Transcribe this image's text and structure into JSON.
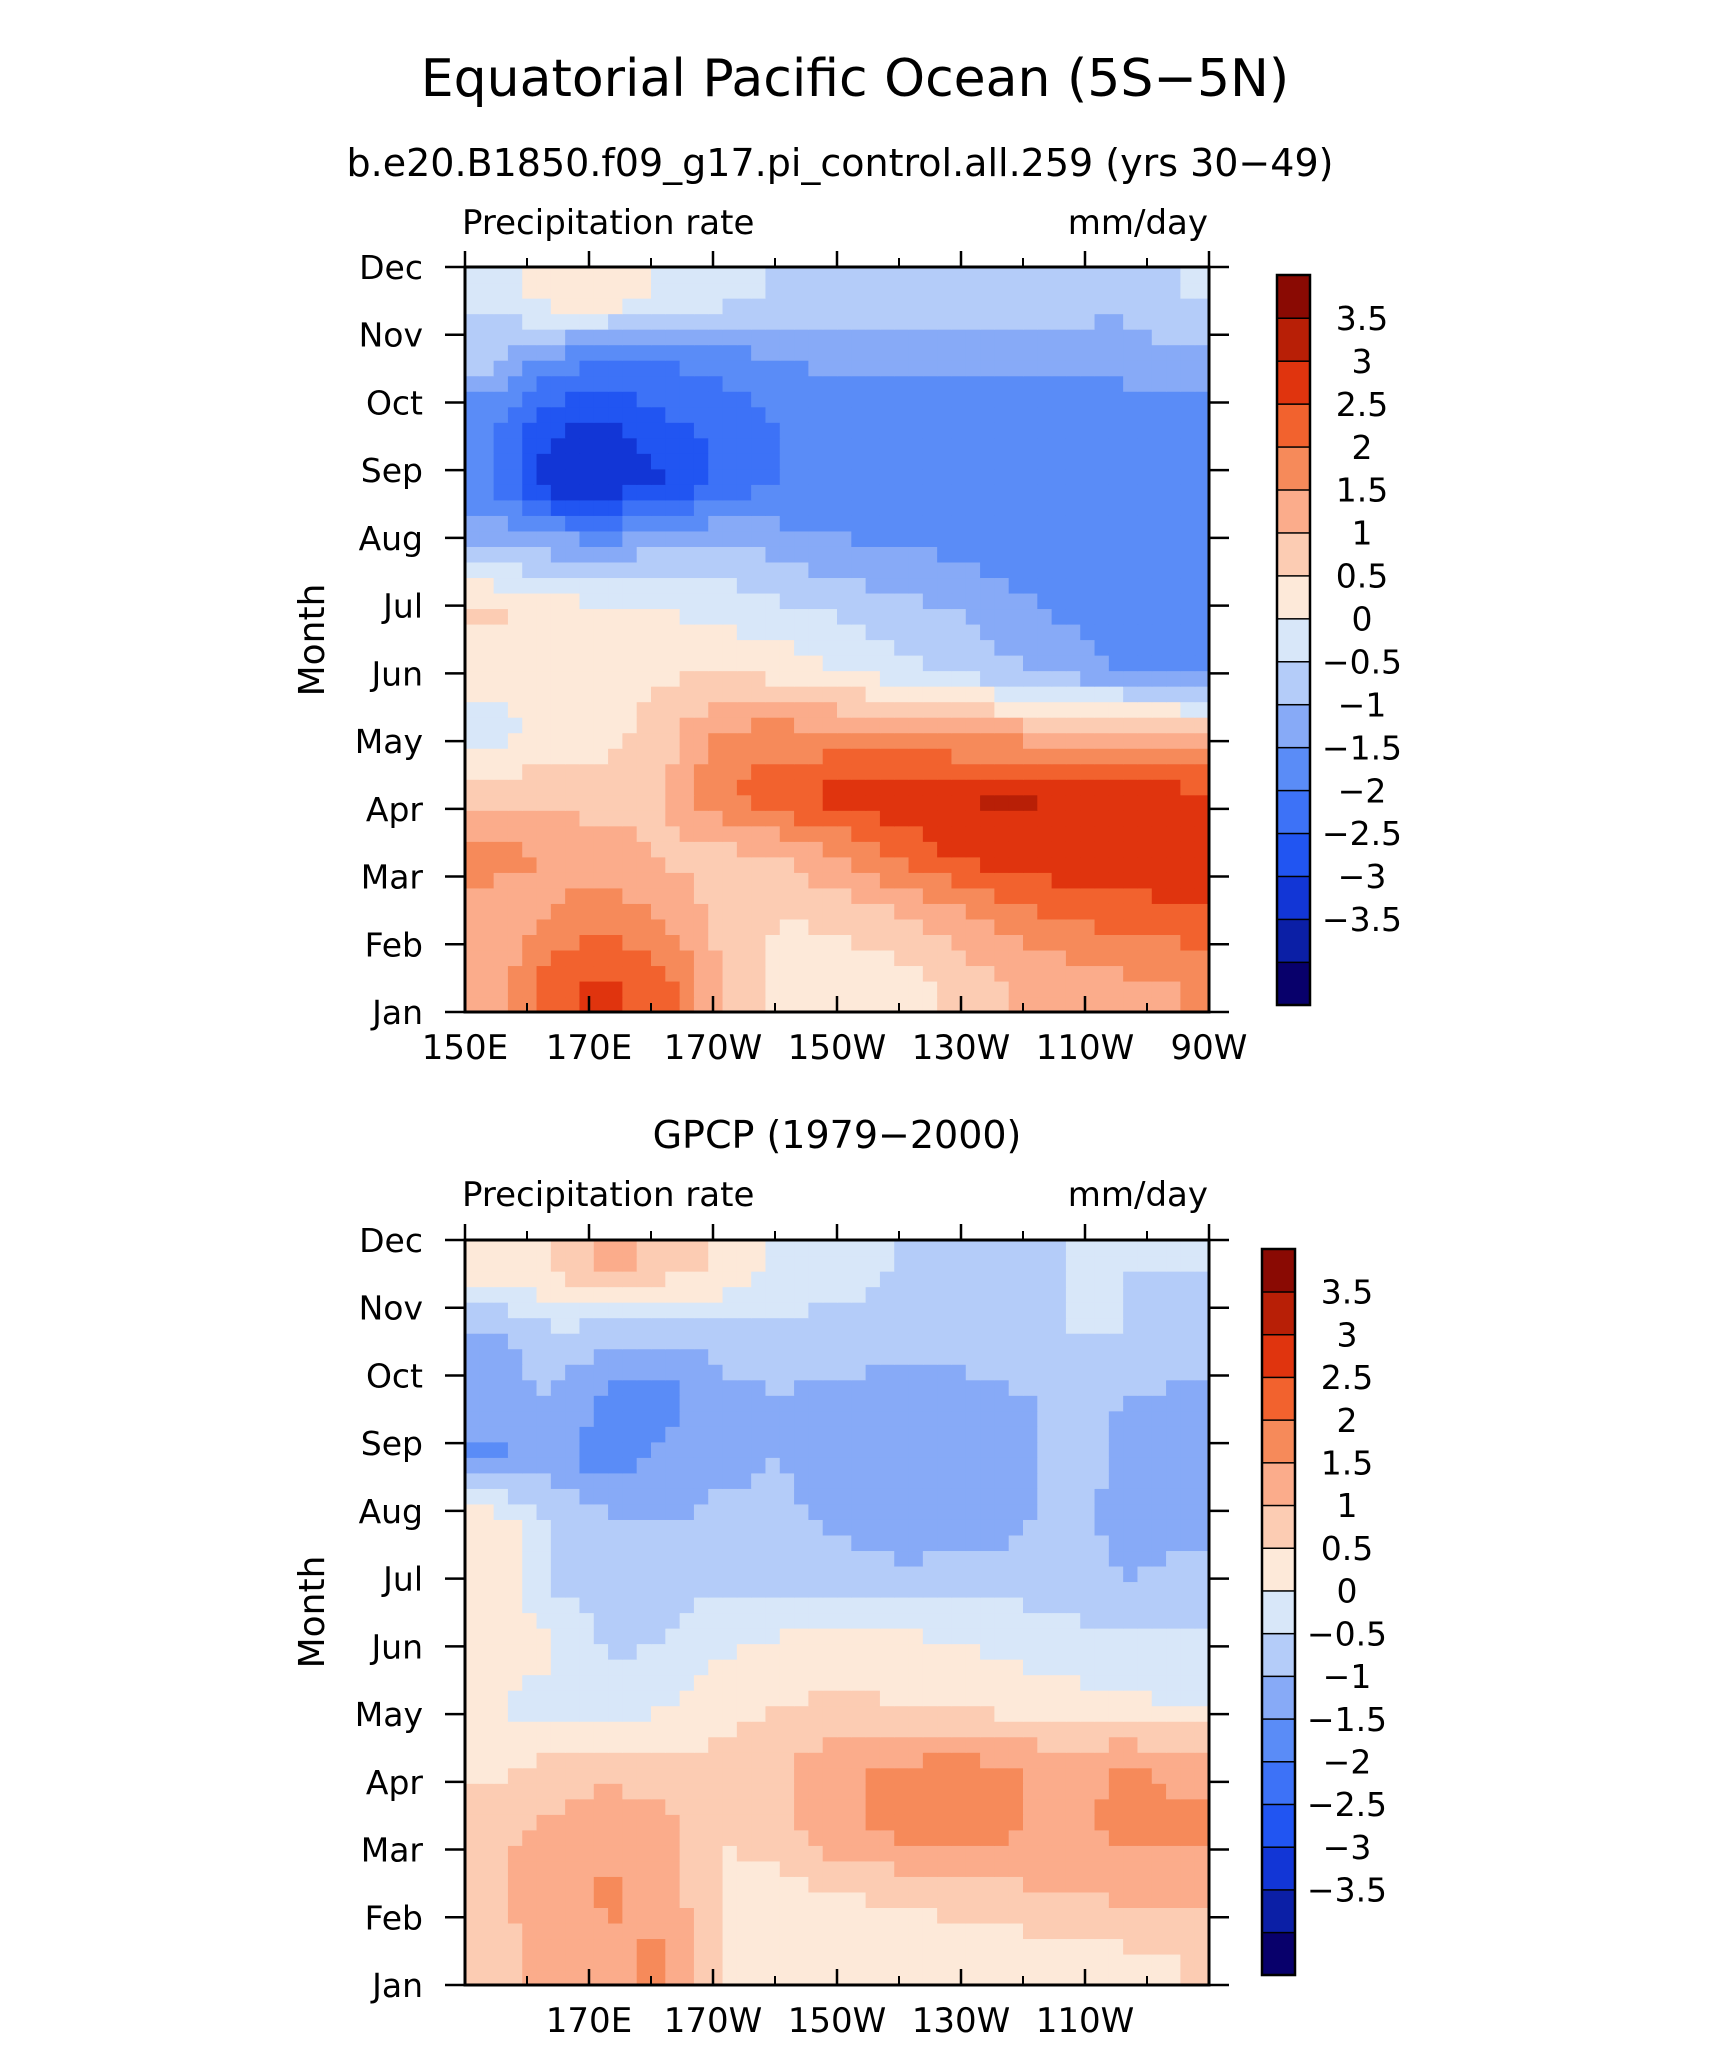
{
  "figure": {
    "title": "Equatorial Pacific Ocean (5S−5N)"
  },
  "colorbar": {
    "colors": [
      "#08006b",
      "#0b1fa6",
      "#1236d6",
      "#2155f2",
      "#3d72f7",
      "#5a8cf7",
      "#87aaf7",
      "#b4ccf9",
      "#d8e7f9",
      "#fde9d9",
      "#fcccb3",
      "#fbac8b",
      "#f68a5a",
      "#f2622e",
      "#e0340e",
      "#b81f06",
      "#8a0a03"
    ],
    "levels": [
      "−3.5",
      "−3",
      "−2.5",
      "−2",
      "−1.5",
      "−1",
      "−0.5",
      "0",
      "0.5",
      "1",
      "1.5",
      "2",
      "2.5",
      "3",
      "3.5"
    ]
  },
  "chart_data": [
    {
      "type": "heatmap",
      "title": "b.e20.B1850.f09_g17.pi_control.all.259 (yrs 30−49)",
      "left_label": "Precipitation rate",
      "right_label": "mm/day",
      "ylabel": "Month",
      "xlabel": "",
      "x_ticks": [
        "150E",
        "170E",
        "170W",
        "150W",
        "130W",
        "110W",
        "90W"
      ],
      "y_ticks": [
        "Jan",
        "Feb",
        "Mar",
        "Apr",
        "May",
        "Jun",
        "Jul",
        "Aug",
        "Sep",
        "Oct",
        "Nov",
        "Dec"
      ],
      "xlim": [
        "150E",
        "90W"
      ],
      "colorbar_range": [
        -4,
        4
      ],
      "colorbar_interval": 0.5,
      "z_units": "mm/day",
      "x": [
        "150E",
        "160E",
        "170E",
        "180",
        "170W",
        "160W",
        "150W",
        "140W",
        "130W",
        "120W",
        "110W",
        "100W",
        "90W"
      ],
      "y": [
        "Jan",
        "Feb",
        "Mar",
        "Apr",
        "May",
        "Jun",
        "Jul",
        "Aug",
        "Sep",
        "Oct",
        "Nov",
        "Dec"
      ],
      "z": [
        [
          1.2,
          2.4,
          2.6,
          2.2,
          1.0,
          0.3,
          0.1,
          0.3,
          0.6,
          1.0,
          1.2,
          1.4,
          1.5
        ],
        [
          1.0,
          1.5,
          1.8,
          1.5,
          0.8,
          0.5,
          0.6,
          0.9,
          1.3,
          1.7,
          2.0,
          2.2,
          2.3
        ],
        [
          1.8,
          1.4,
          1.3,
          0.9,
          0.8,
          1.0,
          1.5,
          2.0,
          2.5,
          2.8,
          2.9,
          2.9,
          2.9
        ],
        [
          0.8,
          0.9,
          0.7,
          1.0,
          2.0,
          2.4,
          2.7,
          2.9,
          3.0,
          3.1,
          2.9,
          2.8,
          2.7
        ],
        [
          -0.2,
          0.1,
          0.3,
          0.8,
          1.6,
          1.7,
          1.6,
          1.5,
          1.4,
          1.3,
          1.2,
          1.1,
          1.0
        ],
        [
          0.2,
          0.4,
          0.3,
          0.4,
          0.5,
          0.3,
          0.0,
          -0.3,
          -0.6,
          -0.9,
          -1.2,
          -1.5,
          -1.7
        ],
        [
          0.6,
          0.3,
          0.0,
          0.0,
          -0.2,
          -0.4,
          -0.6,
          -0.8,
          -1.0,
          -1.3,
          -1.6,
          -1.8,
          -2.0
        ],
        [
          -1.0,
          -1.2,
          -1.3,
          -1.0,
          -0.9,
          -1.2,
          -1.4,
          -1.5,
          -1.6,
          -1.8,
          -2.0,
          -2.0,
          -2.0
        ],
        [
          -2.0,
          -3.3,
          -3.4,
          -3.0,
          -2.3,
          -2.0,
          -2.0,
          -2.0,
          -2.0,
          -2.0,
          -2.0,
          -2.0,
          -2.0
        ],
        [
          -2.0,
          -2.9,
          -3.1,
          -2.6,
          -2.4,
          -2.0,
          -1.9,
          -1.9,
          -1.9,
          -2.0,
          -2.0,
          -2.0,
          -2.0
        ],
        [
          -0.8,
          -1.7,
          -2.0,
          -2.0,
          -1.8,
          -1.5,
          -1.4,
          -1.4,
          -1.4,
          -1.3,
          -1.3,
          -1.2,
          -1.2
        ],
        [
          -0.4,
          0.3,
          0.4,
          -0.1,
          -0.3,
          -0.6,
          -0.6,
          -0.5,
          -0.6,
          -0.7,
          -0.8,
          -0.9,
          -0.5
        ]
      ]
    },
    {
      "type": "heatmap",
      "title": "GPCP (1979−2000)",
      "left_label": "Precipitation rate",
      "right_label": "mm/day",
      "ylabel": "Month",
      "xlabel": "",
      "x_ticks": [
        "",
        "170E",
        "170W",
        "150W",
        "130W",
        "110W",
        ""
      ],
      "y_ticks": [
        "Jan",
        "Feb",
        "Mar",
        "Apr",
        "May",
        "Jun",
        "Jul",
        "Aug",
        "Sep",
        "Oct",
        "Nov",
        "Dec"
      ],
      "xlim": [
        "150E",
        "90W"
      ],
      "colorbar_range": [
        -4,
        4
      ],
      "colorbar_interval": 0.5,
      "z_units": "mm/day",
      "x": [
        "150E",
        "160E",
        "170E",
        "180",
        "170W",
        "160W",
        "150W",
        "140W",
        "130W",
        "120W",
        "110W",
        "100W",
        "90W"
      ],
      "y": [
        "Jan",
        "Feb",
        "Mar",
        "Apr",
        "May",
        "Jun",
        "Jul",
        "Aug",
        "Sep",
        "Oct",
        "Nov",
        "Dec"
      ],
      "z": [
        [
          0.8,
          1.2,
          1.4,
          1.6,
          0.4,
          0.2,
          0.1,
          0.1,
          0.1,
          0.2,
          0.3,
          0.4,
          0.5
        ],
        [
          0.9,
          1.3,
          1.6,
          1.3,
          0.4,
          0.3,
          0.5,
          0.6,
          0.8,
          0.9,
          1.0,
          1.1,
          1.2
        ],
        [
          0.9,
          1.1,
          1.4,
          1.2,
          0.5,
          0.8,
          1.4,
          1.6,
          1.8,
          1.6,
          1.3,
          1.7,
          1.6
        ],
        [
          0.4,
          0.7,
          0.9,
          0.6,
          0.7,
          0.9,
          1.4,
          1.6,
          1.7,
          1.6,
          1.2,
          1.6,
          1.4
        ],
        [
          0.0,
          -0.2,
          -0.3,
          0.0,
          0.3,
          0.5,
          0.6,
          0.5,
          0.4,
          0.3,
          0.2,
          0.1,
          0.0
        ],
        [
          0.3,
          0.1,
          -0.6,
          -0.5,
          -0.1,
          0.1,
          0.3,
          0.2,
          0.0,
          -0.1,
          -0.3,
          -0.3,
          -0.4
        ],
        [
          0.4,
          -0.6,
          -0.7,
          -0.6,
          -0.6,
          -0.7,
          -0.8,
          -0.9,
          -0.8,
          -0.7,
          -0.8,
          -1.0,
          -0.9
        ],
        [
          0.3,
          -0.5,
          -0.9,
          -1.0,
          -0.9,
          -0.9,
          -1.1,
          -1.2,
          -1.3,
          -1.2,
          -0.7,
          -1.2,
          -1.1
        ],
        [
          -1.6,
          -1.3,
          -1.8,
          -1.4,
          -1.1,
          -1.0,
          -1.3,
          -1.4,
          -1.4,
          -1.3,
          -0.8,
          -1.1,
          -1.2
        ],
        [
          -1.3,
          -1.0,
          -1.6,
          -1.7,
          -1.2,
          -1.0,
          -1.2,
          -1.3,
          -1.3,
          -1.1,
          -0.8,
          -1.0,
          -1.1
        ],
        [
          -1.1,
          -0.6,
          -0.8,
          -0.9,
          -0.7,
          -0.7,
          -0.6,
          -0.6,
          -0.6,
          -0.5,
          -0.5,
          -0.5,
          -0.6
        ],
        [
          0.2,
          0.5,
          1.2,
          0.7,
          0.4,
          -0.1,
          -0.4,
          -0.5,
          -0.6,
          -0.6,
          -0.5,
          -0.5,
          -0.5
        ]
      ]
    }
  ]
}
